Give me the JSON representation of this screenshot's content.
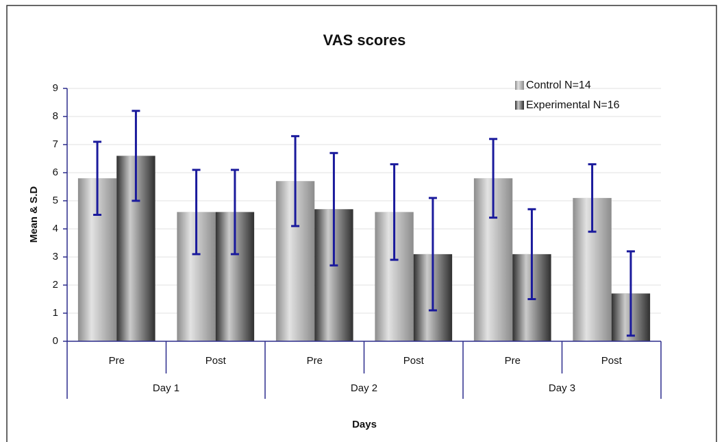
{
  "chart_data": {
    "type": "bar",
    "title": "VAS scores",
    "xlabel": "Days",
    "ylabel": "Mean & S.D",
    "categories": [
      "Pre",
      "Post",
      "Pre",
      "Post",
      "Pre",
      "Post"
    ],
    "groups": [
      "Day 1",
      "Day 2",
      "Day 3"
    ],
    "series": [
      {
        "name": "Control N=14",
        "color": "#8c8c8c",
        "values": [
          5.8,
          4.6,
          5.7,
          4.6,
          5.8,
          5.1
        ],
        "errors": [
          1.3,
          1.5,
          1.6,
          1.7,
          1.4,
          1.2
        ]
      },
      {
        "name": "Experimental N=16",
        "color": "#2f2f2f",
        "values": [
          6.6,
          4.6,
          4.7,
          3.1,
          3.1,
          1.7
        ],
        "errors": [
          1.6,
          1.5,
          2.0,
          2.0,
          1.6,
          1.5
        ]
      }
    ],
    "error_color": "#1a1a9c",
    "ylim": [
      0,
      9
    ],
    "yticks": [
      0,
      1,
      2,
      3,
      4,
      5,
      6,
      7,
      8,
      9
    ],
    "grid": true,
    "legend": "top-right"
  }
}
